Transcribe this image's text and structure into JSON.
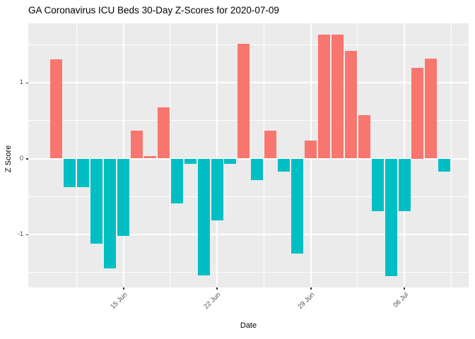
{
  "title": "GA Coronavirus ICU Beds 30-Day Z-Scores for 2020-07-09",
  "chart_data": {
    "type": "bar",
    "title": "GA Coronavirus ICU Beds 30-Day Z-Scores for 2020-07-09",
    "xlabel": "Date",
    "ylabel": "Z Score",
    "x": [
      "2020-06-10",
      "2020-06-11",
      "2020-06-12",
      "2020-06-13",
      "2020-06-14",
      "2020-06-15",
      "2020-06-16",
      "2020-06-17",
      "2020-06-18",
      "2020-06-19",
      "2020-06-20",
      "2020-06-21",
      "2020-06-22",
      "2020-06-23",
      "2020-06-24",
      "2020-06-25",
      "2020-06-26",
      "2020-06-27",
      "2020-06-28",
      "2020-06-29",
      "2020-06-30",
      "2020-07-01",
      "2020-07-02",
      "2020-07-03",
      "2020-07-04",
      "2020-07-05",
      "2020-07-06",
      "2020-07-07",
      "2020-07-08",
      "2020-07-09"
    ],
    "values": [
      1.31,
      -0.38,
      -0.38,
      -1.12,
      -1.45,
      -1.02,
      0.37,
      0.03,
      0.67,
      -0.59,
      -0.07,
      -1.54,
      -0.81,
      -0.07,
      1.51,
      -0.28,
      0.37,
      -0.17,
      -1.25,
      0.24,
      1.63,
      1.63,
      1.42,
      0.57,
      -0.69,
      -1.55,
      -0.69,
      1.2,
      1.32,
      -0.17
    ],
    "ylim": [
      -1.7,
      1.78
    ],
    "y_major_ticks": [
      {
        "value": 1,
        "label": "1"
      },
      {
        "value": 0,
        "label": "0"
      },
      {
        "value": -1,
        "label": "-1"
      }
    ],
    "y_minor_ticks": [
      1.5,
      0.5,
      -0.5,
      -1.5
    ],
    "x_major_ticks": [
      {
        "label": "15 Jun",
        "day_index": 5
      },
      {
        "label": "22 Jun",
        "day_index": 12
      },
      {
        "label": "29 Jun",
        "day_index": 19
      },
      {
        "label": "06 Jul",
        "day_index": 26
      }
    ],
    "x_minor_day_indices": [
      1.5,
      8.5,
      15.5,
      22.5,
      29.5
    ],
    "legend_position": "none",
    "grid": "on",
    "colors": {
      "positive_bar": "#F8766D",
      "negative_bar": "#00BFC4",
      "panel_bg": "#EBEBEB",
      "grid_line": "#FFFFFF",
      "axis_text": "#4D4D4D",
      "tick_mark": "#333333",
      "title_text": "#000000"
    }
  }
}
